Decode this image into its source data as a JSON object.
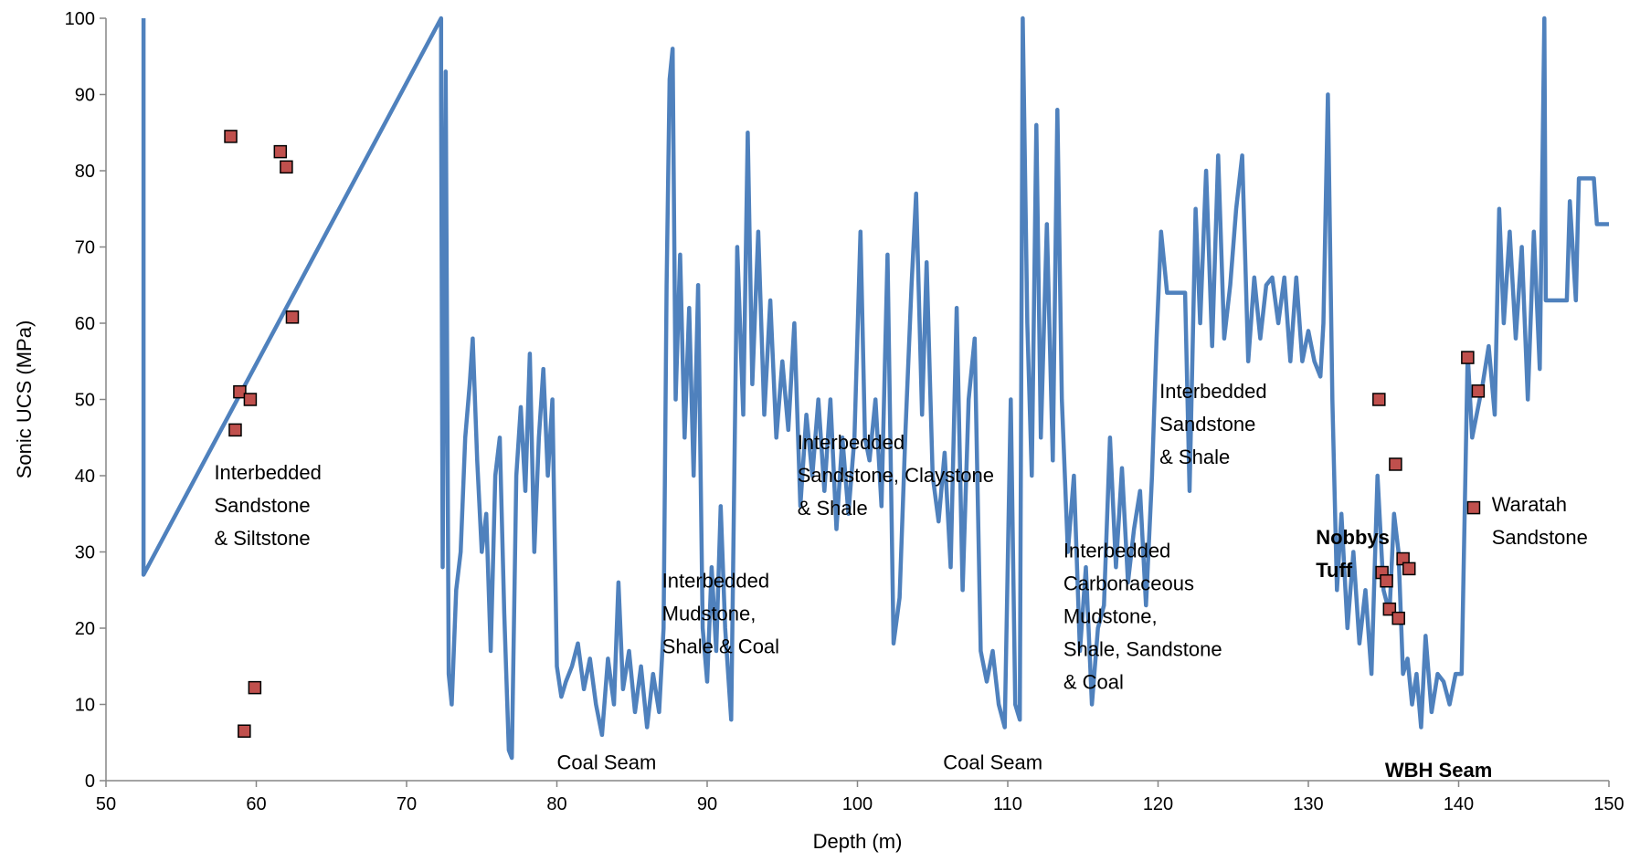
{
  "chart_data": {
    "type": "line",
    "title": "",
    "xlabel": "Depth (m)",
    "ylabel": "Sonic UCS (MPa)",
    "xlim": [
      50,
      150
    ],
    "ylim": [
      0,
      100
    ],
    "x_ticks": [
      50,
      60,
      70,
      80,
      90,
      100,
      110,
      120,
      130,
      140,
      150
    ],
    "y_ticks": [
      0,
      10,
      20,
      30,
      40,
      50,
      60,
      70,
      80,
      90,
      100
    ],
    "grid": false,
    "legend": "none",
    "colors": {
      "line": "#4F81BD",
      "marker_fill": "#C0504D",
      "marker_edge": "#000000"
    },
    "series": [
      {
        "kind": "line",
        "points": [
          [
            52.5,
            100
          ],
          [
            52.5,
            27
          ],
          [
            72.3,
            100
          ],
          [
            72.3,
            90
          ],
          [
            72.4,
            28
          ],
          [
            72.6,
            93
          ],
          [
            72.8,
            14
          ],
          [
            73.0,
            10
          ],
          [
            73.3,
            25
          ],
          [
            73.6,
            30
          ],
          [
            73.9,
            45
          ],
          [
            74.2,
            52
          ],
          [
            74.4,
            58
          ],
          [
            74.7,
            42
          ],
          [
            75.0,
            30
          ],
          [
            75.3,
            35
          ],
          [
            75.6,
            17
          ],
          [
            75.9,
            40
          ],
          [
            76.2,
            45
          ],
          [
            76.5,
            22
          ],
          [
            76.8,
            4
          ],
          [
            77.0,
            3
          ],
          [
            77.3,
            40
          ],
          [
            77.6,
            49
          ],
          [
            77.9,
            38
          ],
          [
            78.2,
            56
          ],
          [
            78.5,
            30
          ],
          [
            78.8,
            45
          ],
          [
            79.1,
            54
          ],
          [
            79.4,
            40
          ],
          [
            79.7,
            50
          ],
          [
            80.0,
            15
          ],
          [
            80.3,
            11
          ],
          [
            80.6,
            13
          ],
          [
            81.0,
            15
          ],
          [
            81.4,
            18
          ],
          [
            81.8,
            12
          ],
          [
            82.2,
            16
          ],
          [
            82.6,
            10
          ],
          [
            83.0,
            6
          ],
          [
            83.4,
            16
          ],
          [
            83.8,
            10
          ],
          [
            84.1,
            26
          ],
          [
            84.4,
            12
          ],
          [
            84.8,
            17
          ],
          [
            85.2,
            9
          ],
          [
            85.6,
            15
          ],
          [
            86.0,
            7
          ],
          [
            86.4,
            14
          ],
          [
            86.8,
            9
          ],
          [
            87.1,
            20
          ],
          [
            87.3,
            65
          ],
          [
            87.5,
            92
          ],
          [
            87.7,
            96
          ],
          [
            87.9,
            50
          ],
          [
            88.2,
            69
          ],
          [
            88.5,
            45
          ],
          [
            88.8,
            62
          ],
          [
            89.1,
            40
          ],
          [
            89.4,
            65
          ],
          [
            89.7,
            20
          ],
          [
            90.0,
            13
          ],
          [
            90.3,
            28
          ],
          [
            90.6,
            17
          ],
          [
            90.9,
            36
          ],
          [
            91.2,
            20
          ],
          [
            91.6,
            8
          ],
          [
            92.0,
            70
          ],
          [
            92.4,
            48
          ],
          [
            92.7,
            85
          ],
          [
            93.0,
            52
          ],
          [
            93.4,
            72
          ],
          [
            93.8,
            48
          ],
          [
            94.2,
            63
          ],
          [
            94.6,
            45
          ],
          [
            95.0,
            55
          ],
          [
            95.4,
            46
          ],
          [
            95.8,
            60
          ],
          [
            96.2,
            36
          ],
          [
            96.6,
            48
          ],
          [
            97.0,
            40
          ],
          [
            97.4,
            50
          ],
          [
            97.8,
            38
          ],
          [
            98.2,
            50
          ],
          [
            98.6,
            33
          ],
          [
            99.0,
            45
          ],
          [
            99.4,
            35
          ],
          [
            99.8,
            45
          ],
          [
            100.2,
            72
          ],
          [
            100.5,
            45
          ],
          [
            100.8,
            42
          ],
          [
            101.2,
            50
          ],
          [
            101.6,
            36
          ],
          [
            102.0,
            69
          ],
          [
            102.4,
            18
          ],
          [
            102.8,
            24
          ],
          [
            103.2,
            46
          ],
          [
            103.6,
            65
          ],
          [
            103.9,
            77
          ],
          [
            104.3,
            48
          ],
          [
            104.6,
            68
          ],
          [
            105.0,
            40
          ],
          [
            105.4,
            34
          ],
          [
            105.8,
            43
          ],
          [
            106.2,
            28
          ],
          [
            106.6,
            62
          ],
          [
            107.0,
            25
          ],
          [
            107.4,
            50
          ],
          [
            107.8,
            58
          ],
          [
            108.2,
            17
          ],
          [
            108.6,
            13
          ],
          [
            109.0,
            17
          ],
          [
            109.4,
            10
          ],
          [
            109.8,
            7
          ],
          [
            110.2,
            50
          ],
          [
            110.5,
            10
          ],
          [
            110.8,
            8
          ],
          [
            111.0,
            100
          ],
          [
            111.3,
            60
          ],
          [
            111.6,
            40
          ],
          [
            111.9,
            86
          ],
          [
            112.2,
            45
          ],
          [
            112.6,
            73
          ],
          [
            113.0,
            42
          ],
          [
            113.3,
            88
          ],
          [
            113.6,
            50
          ],
          [
            114.0,
            30
          ],
          [
            114.4,
            40
          ],
          [
            114.8,
            17
          ],
          [
            115.2,
            28
          ],
          [
            115.6,
            10
          ],
          [
            116.0,
            20
          ],
          [
            116.4,
            23
          ],
          [
            116.8,
            45
          ],
          [
            117.2,
            28
          ],
          [
            117.6,
            41
          ],
          [
            118.0,
            26
          ],
          [
            118.4,
            33
          ],
          [
            118.8,
            38
          ],
          [
            119.2,
            23
          ],
          [
            119.6,
            40
          ],
          [
            119.9,
            58
          ],
          [
            120.2,
            72
          ],
          [
            120.6,
            64
          ],
          [
            121.0,
            64
          ],
          [
            121.4,
            64
          ],
          [
            121.8,
            64
          ],
          [
            122.1,
            38
          ],
          [
            122.5,
            75
          ],
          [
            122.8,
            60
          ],
          [
            123.2,
            80
          ],
          [
            123.6,
            57
          ],
          [
            124.0,
            82
          ],
          [
            124.4,
            58
          ],
          [
            124.8,
            65
          ],
          [
            125.2,
            75
          ],
          [
            125.6,
            82
          ],
          [
            126.0,
            55
          ],
          [
            126.4,
            66
          ],
          [
            126.8,
            58
          ],
          [
            127.2,
            65
          ],
          [
            127.6,
            66
          ],
          [
            128.0,
            60
          ],
          [
            128.4,
            66
          ],
          [
            128.8,
            55
          ],
          [
            129.2,
            66
          ],
          [
            129.6,
            55
          ],
          [
            130.0,
            59
          ],
          [
            130.4,
            55
          ],
          [
            130.8,
            53
          ],
          [
            131.0,
            60
          ],
          [
            131.3,
            90
          ],
          [
            131.6,
            50
          ],
          [
            131.9,
            25
          ],
          [
            132.2,
            35
          ],
          [
            132.6,
            20
          ],
          [
            133.0,
            30
          ],
          [
            133.4,
            18
          ],
          [
            133.8,
            25
          ],
          [
            134.2,
            14
          ],
          [
            134.6,
            40
          ],
          [
            135.0,
            25
          ],
          [
            135.4,
            22
          ],
          [
            135.7,
            35
          ],
          [
            136.0,
            30
          ],
          [
            136.3,
            14
          ],
          [
            136.6,
            16
          ],
          [
            136.9,
            10
          ],
          [
            137.2,
            14
          ],
          [
            137.5,
            7
          ],
          [
            137.8,
            19
          ],
          [
            138.2,
            9
          ],
          [
            138.6,
            14
          ],
          [
            139.0,
            13
          ],
          [
            139.4,
            10
          ],
          [
            139.8,
            14
          ],
          [
            140.2,
            14
          ],
          [
            140.6,
            56
          ],
          [
            140.9,
            45
          ],
          [
            141.2,
            48
          ],
          [
            141.6,
            52
          ],
          [
            142.0,
            57
          ],
          [
            142.4,
            48
          ],
          [
            142.7,
            75
          ],
          [
            143.0,
            60
          ],
          [
            143.4,
            72
          ],
          [
            143.8,
            58
          ],
          [
            144.2,
            70
          ],
          [
            144.6,
            50
          ],
          [
            145.0,
            72
          ],
          [
            145.4,
            54
          ],
          [
            145.7,
            100
          ],
          [
            145.8,
            63
          ],
          [
            146.5,
            63
          ],
          [
            147.2,
            63
          ],
          [
            147.4,
            76
          ],
          [
            147.8,
            63
          ],
          [
            148.0,
            79
          ],
          [
            149.0,
            79
          ],
          [
            149.2,
            73
          ],
          [
            150.0,
            73
          ]
        ]
      },
      {
        "kind": "scatter",
        "points": [
          [
            58.3,
            84.5
          ],
          [
            58.6,
            46
          ],
          [
            58.9,
            51
          ],
          [
            59.2,
            6.5
          ],
          [
            59.6,
            50
          ],
          [
            59.9,
            12.2
          ],
          [
            61.6,
            82.5
          ],
          [
            62.0,
            80.5
          ],
          [
            62.4,
            60.8
          ],
          [
            134.7,
            50
          ],
          [
            134.9,
            27.3
          ],
          [
            135.2,
            26.2
          ],
          [
            135.4,
            22.5
          ],
          [
            135.8,
            41.5
          ],
          [
            136.0,
            21.3
          ],
          [
            136.3,
            29.1
          ],
          [
            136.7,
            27.8
          ],
          [
            140.6,
            55.5
          ],
          [
            141.0,
            35.8
          ],
          [
            141.3,
            51.1
          ]
        ]
      }
    ],
    "annotations": [
      {
        "lines": [
          "Interbedded",
          "Sandstone",
          "& Siltstone"
        ],
        "x": 57.2,
        "y": 39.5,
        "bold": false
      },
      {
        "lines": [
          "Coal Seam"
        ],
        "x": 80.0,
        "y": 1.5,
        "bold": false
      },
      {
        "lines": [
          "Interbedded",
          "Mudstone,",
          "Shale & Coal"
        ],
        "x": 87.0,
        "y": 25.3,
        "bold": false
      },
      {
        "lines": [
          "Interbedded",
          "Sandstone, Claystone",
          "& Shale"
        ],
        "x": 96.0,
        "y": 43.5,
        "bold": false
      },
      {
        "lines": [
          "Coal Seam"
        ],
        "x": 105.7,
        "y": 1.5,
        "bold": false
      },
      {
        "lines": [
          "Interbedded",
          "Carbonaceous",
          "Mudstone,",
          "Shale, Sandstone",
          "& Coal"
        ],
        "x": 113.7,
        "y": 29.3,
        "bold": false
      },
      {
        "lines": [
          "Interbedded",
          "Sandstone",
          "& Shale"
        ],
        "x": 120.1,
        "y": 50.2,
        "bold": false
      },
      {
        "lines": [
          "Nobbys",
          "Tuff"
        ],
        "x": 130.5,
        "y": 31.0,
        "bold": true
      },
      {
        "lines": [
          "Waratah",
          "Sandstone"
        ],
        "x": 142.2,
        "y": 35.3,
        "bold": false
      },
      {
        "lines": [
          "WBH Seam"
        ],
        "x": 135.1,
        "y": 0.5,
        "bold": true
      }
    ]
  }
}
